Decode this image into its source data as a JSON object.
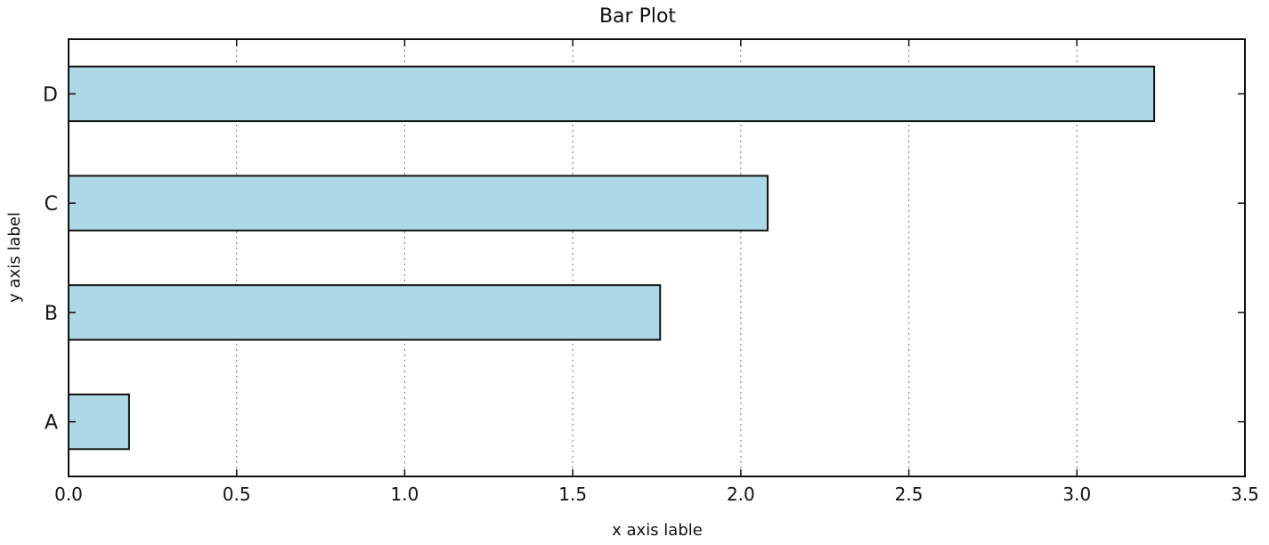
{
  "chart_data": {
    "type": "bar",
    "orientation": "horizontal",
    "title": "Bar Plot",
    "xlabel": "x axis lable",
    "ylabel": "y axis label",
    "categories": [
      "A",
      "B",
      "C",
      "D"
    ],
    "values": [
      0.18,
      1.76,
      2.08,
      3.23
    ],
    "xlim": [
      0.0,
      3.5
    ],
    "xticks": [
      "0.0",
      "0.5",
      "1.0",
      "1.5",
      "2.0",
      "2.5",
      "3.0",
      "3.5"
    ],
    "grid": "vertical dotted",
    "legend": "none",
    "colors": {
      "bar_fill": "#add8e6",
      "bar_edge": "#111111",
      "grid": "#8c8c8c",
      "axes": "#111111"
    }
  }
}
